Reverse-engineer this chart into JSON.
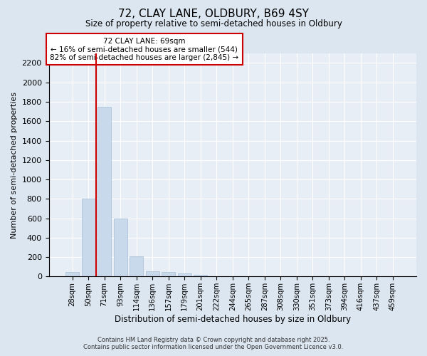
{
  "title1": "72, CLAY LANE, OLDBURY, B69 4SY",
  "title2": "Size of property relative to semi-detached houses in Oldbury",
  "xlabel": "Distribution of semi-detached houses by size in Oldbury",
  "ylabel": "Number of semi-detached properties",
  "categories": [
    "28sqm",
    "50sqm",
    "71sqm",
    "93sqm",
    "114sqm",
    "136sqm",
    "157sqm",
    "179sqm",
    "201sqm",
    "222sqm",
    "244sqm",
    "265sqm",
    "287sqm",
    "308sqm",
    "330sqm",
    "351sqm",
    "373sqm",
    "394sqm",
    "416sqm",
    "437sqm",
    "459sqm"
  ],
  "values": [
    50,
    800,
    1750,
    600,
    205,
    55,
    45,
    35,
    20,
    5,
    0,
    0,
    0,
    0,
    0,
    0,
    0,
    0,
    0,
    0,
    0
  ],
  "bar_color": "#c9d9ec",
  "bar_edge_color": "#a8bfd4",
  "red_line_x": 1.5,
  "annotation_title": "72 CLAY LANE: 69sqm",
  "annotation_line1": "← 16% of semi-detached houses are smaller (544)",
  "annotation_line2": "82% of semi-detached houses are larger (2,845) →",
  "annotation_box_color": "#ffffff",
  "annotation_box_edge_color": "#cc0000",
  "red_line_color": "#cc0000",
  "ylim": [
    0,
    2300
  ],
  "yticks": [
    0,
    200,
    400,
    600,
    800,
    1000,
    1200,
    1400,
    1600,
    1800,
    2000,
    2200
  ],
  "footer1": "Contains HM Land Registry data © Crown copyright and database right 2025.",
  "footer2": "Contains public sector information licensed under the Open Government Licence v3.0.",
  "bg_color": "#dce6f0",
  "plot_bg_color": "#e8eef6"
}
